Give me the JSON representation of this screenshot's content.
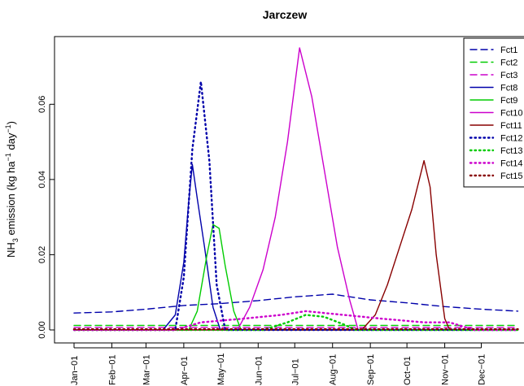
{
  "chart_data": {
    "type": "line",
    "title": "Jarczew",
    "ylabel": {
      "prefix": "NH",
      "sub": "3",
      "mid": " emission (kg ha",
      "sup1": "−1",
      "mid2": " day",
      "sup2": "−1",
      "suffix": ")"
    },
    "xlabel": "",
    "x_ticks": [
      "Jan−01",
      "Feb−01",
      "Mar−01",
      "Apr−01",
      "May−01",
      "Jun−01",
      "Jul−01",
      "Aug−01",
      "Sep−01",
      "Oct−01",
      "Nov−01",
      "Dec−01"
    ],
    "y_ticks": [
      "0.00",
      "0.02",
      "0.04",
      "0.06"
    ],
    "ylim": [
      0,
      0.078
    ],
    "legend_position": "top-right",
    "series": [
      {
        "name": "Fct1",
        "color": "#0000aa",
        "dash": "dashed",
        "x": [
          "Jan-01",
          "Feb-01",
          "Mar-01",
          "Apr-01",
          "May-01",
          "Jun-01",
          "Jul-01",
          "Aug-01",
          "Sep-01",
          "Oct-01",
          "Nov-01",
          "Dec-01",
          "Dec-31"
        ],
        "y": [
          0.0045,
          0.0048,
          0.0055,
          0.0065,
          0.007,
          0.0078,
          0.0088,
          0.0095,
          0.008,
          0.0072,
          0.0062,
          0.0055,
          0.005
        ]
      },
      {
        "name": "Fct2",
        "color": "#00cc00",
        "dash": "dashed",
        "x": [
          "Jan-01",
          "Dec-31"
        ],
        "y": [
          0.0012,
          0.0012
        ]
      },
      {
        "name": "Fct3",
        "color": "#cc00cc",
        "dash": "dashed",
        "x": [
          "Jan-01",
          "Dec-31"
        ],
        "y": [
          0.0007,
          0.0007
        ]
      },
      {
        "name": "Fct8",
        "color": "#0000aa",
        "dash": "solid",
        "x": [
          "Jan-01",
          "Mar-15",
          "Mar-25",
          "Apr-01",
          "Apr-05",
          "Apr-08",
          "Apr-12",
          "Apr-18",
          "Apr-25",
          "May-01",
          "Dec-31"
        ],
        "y": [
          0,
          0,
          0.004,
          0.018,
          0.034,
          0.044,
          0.035,
          0.022,
          0.006,
          0,
          0
        ]
      },
      {
        "name": "Fct9",
        "color": "#00cc00",
        "dash": "solid",
        "x": [
          "Jan-01",
          "Apr-05",
          "Apr-12",
          "Apr-20",
          "Apr-25",
          "Apr-30",
          "May-05",
          "May-12",
          "May-18",
          "Dec-31"
        ],
        "y": [
          0,
          0,
          0.005,
          0.02,
          0.028,
          0.027,
          0.017,
          0.005,
          0,
          0
        ]
      },
      {
        "name": "Fct10",
        "color": "#cc00cc",
        "dash": "solid",
        "x": [
          "Jan-01",
          "May-15",
          "May-25",
          "Jun-05",
          "Jun-15",
          "Jun-25",
          "Jul-05",
          "Jul-15",
          "Jul-25",
          "Aug-05",
          "Aug-15",
          "Aug-22",
          "Dec-31"
        ],
        "y": [
          0,
          0,
          0.006,
          0.016,
          0.03,
          0.05,
          0.075,
          0.062,
          0.043,
          0.022,
          0.008,
          0,
          0
        ]
      },
      {
        "name": "Fct11",
        "color": "#880000",
        "dash": "solid",
        "x": [
          "Jan-01",
          "Aug-25",
          "Sep-05",
          "Sep-15",
          "Sep-25",
          "Oct-05",
          "Oct-15",
          "Oct-20",
          "Oct-25",
          "Nov-01",
          "Nov-05",
          "Dec-31"
        ],
        "y": [
          0,
          0,
          0.004,
          0.012,
          0.022,
          0.032,
          0.045,
          0.038,
          0.02,
          0.003,
          0,
          0
        ]
      },
      {
        "name": "Fct12",
        "color": "#0000aa",
        "dash": "dotted",
        "x": [
          "Jan-01",
          "Mar-25",
          "Apr-01",
          "Apr-08",
          "Apr-15",
          "Apr-22",
          "Apr-28",
          "May-05",
          "Dec-31"
        ],
        "y": [
          0,
          0,
          0.014,
          0.048,
          0.066,
          0.045,
          0.012,
          0,
          0
        ]
      },
      {
        "name": "Fct13",
        "color": "#00cc00",
        "dash": "dotted",
        "x": [
          "Jan-01",
          "Jun-05",
          "Jun-25",
          "Jul-10",
          "Jul-25",
          "Aug-10",
          "Aug-20",
          "Dec-31"
        ],
        "y": [
          0,
          0,
          0.002,
          0.004,
          0.0035,
          0.0015,
          0,
          0
        ]
      },
      {
        "name": "Fct14",
        "color": "#cc00cc",
        "dash": "dotted",
        "x": [
          "Jan-01",
          "Mar-25",
          "Apr-15",
          "May-20",
          "Jun-20",
          "Jul-10",
          "Aug-10",
          "Sep-10",
          "Oct-15",
          "Nov-05",
          "Nov-25",
          "Dec-31"
        ],
        "y": [
          0,
          0,
          0.002,
          0.003,
          0.004,
          0.005,
          0.004,
          0.003,
          0.002,
          0.002,
          0,
          0
        ]
      },
      {
        "name": "Fct15",
        "color": "#880000",
        "dash": "dotted",
        "x": [
          "Jan-01",
          "Dec-31"
        ],
        "y": [
          0.0002,
          0.0002
        ]
      }
    ]
  }
}
